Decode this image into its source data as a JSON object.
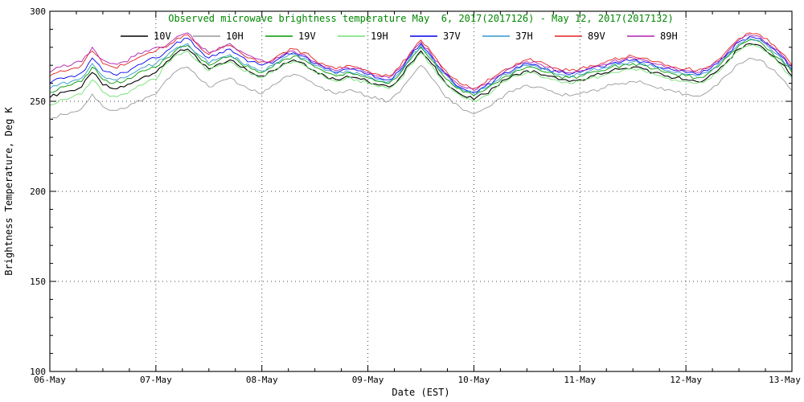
{
  "chart_data": {
    "type": "line",
    "title": "Observed microwave brightness temperature May  6, 2017(2017126) - May 12, 2017(2017132)",
    "title_color": "#008800",
    "xlabel": "Date (EST)",
    "ylabel": "Brightness Temperature, Deg K",
    "ylim": [
      100,
      300
    ],
    "yticks": [
      100,
      150,
      200,
      250,
      300
    ],
    "xtick_labels": [
      "06-May",
      "07-May",
      "08-May",
      "09-May",
      "10-May",
      "11-May",
      "12-May",
      "13-May"
    ],
    "x_note": "days since 06-May 00:00 EST",
    "grid": "dotted",
    "legend_position": "top-inside",
    "x": [
      0,
      0.1,
      0.2,
      0.3,
      0.4,
      0.5,
      0.6,
      0.7,
      0.8,
      0.9,
      1,
      1.1,
      1.2,
      1.3,
      1.4,
      1.5,
      1.6,
      1.7,
      1.8,
      1.9,
      2,
      2.1,
      2.2,
      2.3,
      2.4,
      2.5,
      2.6,
      2.7,
      2.8,
      2.9,
      3,
      3.1,
      3.2,
      3.3,
      3.4,
      3.5,
      3.6,
      3.7,
      3.8,
      3.9,
      4,
      4.1,
      4.2,
      4.3,
      4.4,
      4.5,
      4.6,
      4.7,
      4.8,
      4.9,
      5,
      5.1,
      5.2,
      5.3,
      5.4,
      5.5,
      5.6,
      5.7,
      5.8,
      5.9,
      6,
      6.1,
      6.2,
      6.3,
      6.4,
      6.5,
      6.6,
      6.7,
      6.8,
      6.9,
      7
    ],
    "series": [
      {
        "name": "10V",
        "color": "#000000",
        "values": [
          252,
          255,
          256,
          258,
          266,
          259,
          257,
          258,
          261,
          264,
          266,
          272,
          277,
          279,
          273,
          268,
          271,
          273,
          269,
          266,
          264,
          267,
          271,
          273,
          271,
          267,
          264,
          262,
          264,
          263,
          261,
          259,
          258,
          263,
          271,
          278,
          271,
          263,
          257,
          253,
          251,
          254,
          258,
          262,
          265,
          267,
          266,
          264,
          262,
          261,
          262,
          264,
          265,
          267,
          268,
          269,
          268,
          266,
          264,
          263,
          262,
          261,
          263,
          267,
          273,
          279,
          282,
          281,
          276,
          271,
          264
        ]
      },
      {
        "name": "10H",
        "color": "#999999",
        "values": [
          240,
          243,
          244,
          246,
          254,
          247,
          245,
          246,
          249,
          252,
          254,
          262,
          267,
          269,
          263,
          258,
          261,
          263,
          259,
          256,
          254,
          259,
          263,
          265,
          263,
          259,
          256,
          254,
          256,
          255,
          253,
          251,
          250,
          255,
          263,
          270,
          263,
          255,
          249,
          245,
          243,
          246,
          250,
          254,
          257,
          259,
          258,
          256,
          254,
          253,
          254,
          256,
          257,
          259,
          260,
          261,
          260,
          258,
          256,
          255,
          254,
          253,
          255,
          259,
          265,
          271,
          274,
          273,
          268,
          263,
          256
        ]
      },
      {
        "name": "19V",
        "color": "#009900",
        "values": [
          255,
          258,
          259,
          261,
          269,
          262,
          260,
          261,
          264,
          267,
          269,
          274,
          279,
          281,
          275,
          270,
          273,
          275,
          271,
          268,
          266,
          269,
          273,
          275,
          273,
          269,
          266,
          264,
          266,
          265,
          263,
          261,
          260,
          265,
          273,
          280,
          273,
          265,
          259,
          255,
          253,
          256,
          260,
          264,
          267,
          269,
          268,
          266,
          264,
          263,
          264,
          266,
          267,
          269,
          270,
          271,
          270,
          268,
          266,
          265,
          264,
          263,
          265,
          269,
          275,
          281,
          284,
          283,
          278,
          273,
          266
        ]
      },
      {
        "name": "19H",
        "color": "#70e070",
        "values": [
          248,
          251,
          252,
          254,
          262,
          255,
          253,
          254,
          257,
          260,
          262,
          271,
          276,
          278,
          272,
          267,
          270,
          272,
          268,
          265,
          263,
          266,
          270,
          272,
          270,
          266,
          263,
          261,
          263,
          262,
          260,
          258,
          257,
          262,
          270,
          277,
          270,
          262,
          256,
          252,
          250,
          253,
          257,
          261,
          264,
          266,
          265,
          263,
          261,
          260,
          261,
          263,
          264,
          266,
          267,
          268,
          267,
          265,
          263,
          262,
          261,
          260,
          262,
          266,
          272,
          278,
          281,
          280,
          275,
          270,
          263
        ]
      },
      {
        "name": "37V",
        "color": "#0000ee",
        "values": [
          260,
          263,
          264,
          266,
          274,
          267,
          265,
          266,
          269,
          272,
          274,
          278,
          283,
          285,
          279,
          274,
          277,
          279,
          275,
          272,
          270,
          271,
          275,
          277,
          275,
          271,
          268,
          266,
          268,
          267,
          265,
          263,
          262,
          267,
          275,
          282,
          275,
          267,
          261,
          257,
          255,
          258,
          262,
          266,
          269,
          271,
          270,
          268,
          266,
          265,
          266,
          268,
          269,
          271,
          272,
          273,
          272,
          270,
          268,
          267,
          266,
          265,
          267,
          271,
          277,
          283,
          286,
          285,
          280,
          275,
          268
        ]
      },
      {
        "name": "37H",
        "color": "#3399cc",
        "values": [
          257,
          260,
          261,
          263,
          271,
          264,
          262,
          263,
          266,
          269,
          271,
          275,
          280,
          282,
          276,
          271,
          274,
          276,
          272,
          269,
          267,
          270,
          274,
          276,
          274,
          270,
          267,
          265,
          267,
          266,
          264,
          262,
          261,
          266,
          274,
          281,
          274,
          266,
          260,
          256,
          254,
          257,
          261,
          265,
          268,
          270,
          269,
          267,
          265,
          264,
          265,
          267,
          268,
          270,
          271,
          272,
          271,
          269,
          267,
          266,
          265,
          264,
          266,
          270,
          276,
          282,
          285,
          284,
          279,
          274,
          267
        ]
      },
      {
        "name": "89V",
        "color": "#e02020",
        "values": [
          264,
          267,
          268,
          270,
          278,
          271,
          269,
          270,
          273,
          276,
          278,
          280,
          285,
          287,
          281,
          276,
          279,
          281,
          277,
          274,
          272,
          273,
          277,
          279,
          277,
          273,
          270,
          268,
          270,
          269,
          267,
          265,
          264,
          269,
          277,
          284,
          277,
          269,
          263,
          259,
          257,
          260,
          264,
          268,
          271,
          273,
          272,
          270,
          268,
          267,
          268,
          270,
          271,
          273,
          274,
          275,
          274,
          272,
          270,
          269,
          268,
          267,
          269,
          273,
          279,
          285,
          288,
          287,
          282,
          277,
          270
        ]
      },
      {
        "name": "89H",
        "color": "#b020b0",
        "values": [
          266,
          269,
          270,
          272,
          280,
          273,
          271,
          272,
          275,
          278,
          280,
          281,
          286,
          288,
          282,
          277,
          280,
          282,
          278,
          275,
          273,
          272,
          276,
          278,
          276,
          272,
          269,
          267,
          269,
          268,
          266,
          264,
          263,
          268,
          276,
          283,
          276,
          268,
          262,
          258,
          256,
          259,
          263,
          267,
          270,
          272,
          271,
          269,
          267,
          266,
          267,
          269,
          270,
          272,
          273,
          274,
          273,
          271,
          269,
          268,
          267,
          266,
          268,
          272,
          278,
          284,
          287,
          286,
          281,
          276,
          269
        ]
      }
    ]
  }
}
